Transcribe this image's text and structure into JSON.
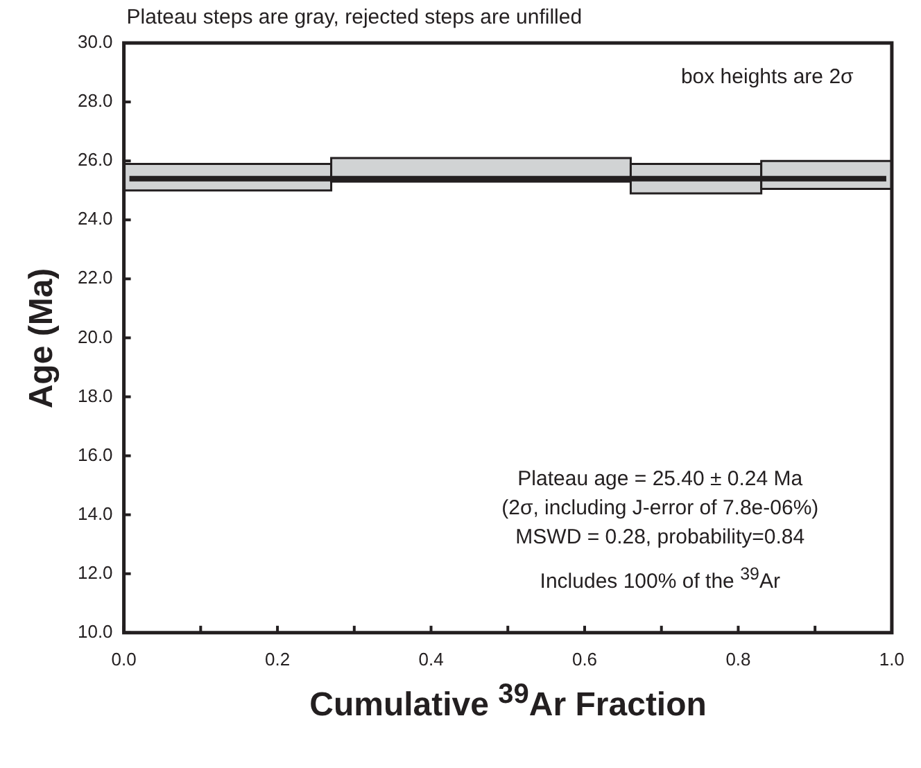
{
  "chart_data": {
    "type": "histogram",
    "title": "Plateau steps are gray, rejected steps are unfilled",
    "xlabel": "Cumulative $^{39}$Ar Fraction",
    "ylabel": "Age (Ma)",
    "bins": [
      0,
      0.27,
      0.66,
      0.83,
      1.0
    ],
    "values": [
      0.9,
      0.8,
      1.0,
      0.95
    ],
    "base": [
      25.0,
      25.3,
      24.9,
      25.05
    ],
    "color": "#d1d3d4",
    "ref_lines": [
      {
        "axis": "y",
        "value": 25.4,
        "color": "#231f20"
      }
    ],
    "xlim": [
      0,
      1
    ],
    "xticks": [
      {
        "value": 0,
        "label": "0.0"
      },
      {
        "value": 0.1,
        "label": null
      },
      {
        "value": 0.2,
        "label": "0.2"
      },
      {
        "value": 0.3,
        "label": null
      },
      {
        "value": 0.4,
        "label": "0.4"
      },
      {
        "value": 0.5,
        "label": null
      },
      {
        "value": 0.6,
        "label": "0.6"
      },
      {
        "value": 0.7,
        "label": null
      },
      {
        "value": 0.8,
        "label": "0.8"
      },
      {
        "value": 0.9,
        "label": null
      },
      {
        "value": 1,
        "label": "1.0"
      }
    ],
    "ylim": [
      10,
      30
    ],
    "yticks": [
      {
        "value": 10,
        "label": "10.0"
      },
      {
        "value": 12,
        "label": "12.0"
      },
      {
        "value": 14,
        "label": "14.0"
      },
      {
        "value": 16,
        "label": "16.0"
      },
      {
        "value": 18,
        "label": "18.0"
      },
      {
        "value": 20,
        "label": "20.0"
      },
      {
        "value": 22,
        "label": "22.0"
      },
      {
        "value": 24,
        "label": "24.0"
      },
      {
        "value": 26,
        "label": "26.0"
      },
      {
        "value": 28,
        "label": "28.0"
      },
      {
        "value": 30,
        "label": "30.0"
      }
    ],
    "grid": false,
    "legend": false,
    "annotations": [
      "box heights are 2σ",
      "Plateau age = 25.40 ± 0.24 Ma",
      "(2σ, including J-error of 7.8e-06%)",
      "MSWD = 0.28, probability=0.84",
      "Includes 100% of the $^{39}$Ar"
    ]
  }
}
